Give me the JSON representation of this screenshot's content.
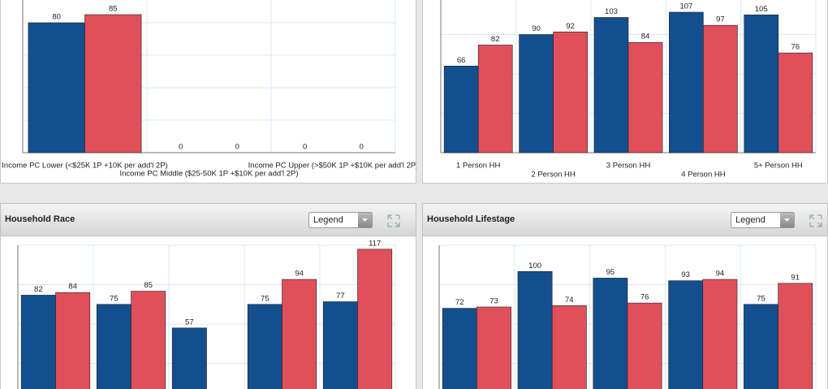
{
  "chart_data": [
    {
      "type": "bar",
      "categories": [
        "Income PC Lower (<$25K 1P +10K per add'l 2P)",
        "Income PC Middle ($25-50K 1P +$10K per add'l 2P)",
        "Income PC Upper (>$50K 1P +$10K per add'l 2P)"
      ],
      "series": [
        {
          "color": "#134f8f",
          "values": [
            80,
            0,
            0
          ]
        },
        {
          "color": "#e0505a",
          "values": [
            85,
            0,
            0
          ]
        }
      ],
      "ylim": [
        0,
        95
      ],
      "yticks": [
        0,
        20,
        40,
        60,
        80
      ],
      "grid": true
    },
    {
      "type": "bar",
      "categories": [
        "1 Person HH",
        "2 Person HH",
        "3 Person HH",
        "4 Person HH",
        "5+ Person HH"
      ],
      "series": [
        {
          "color": "#134f8f",
          "values": [
            66,
            90,
            103,
            107,
            105
          ]
        },
        {
          "color": "#e0505a",
          "values": [
            82,
            92,
            84,
            97,
            76
          ]
        }
      ],
      "ylim": [
        0,
        120
      ],
      "yticks": [
        0,
        30,
        60,
        90,
        120
      ],
      "grid": true
    },
    {
      "type": "bar",
      "title": "Household Race",
      "legend_button": "Legend",
      "categories": [
        null,
        null,
        null,
        null,
        null
      ],
      "series": [
        {
          "color": "#134f8f",
          "values": [
            82,
            75,
            57,
            75,
            77
          ]
        },
        {
          "color": "#e0505a",
          "values": [
            84,
            85,
            null,
            94,
            117
          ]
        }
      ],
      "ylim": [
        0,
        120
      ],
      "yticks": [
        0,
        30,
        60,
        90,
        120
      ],
      "grid": true
    },
    {
      "type": "bar",
      "title": "Household Lifestage",
      "legend_button": "Legend",
      "categories": [
        null,
        null,
        null,
        null,
        null
      ],
      "series": [
        {
          "color": "#134f8f",
          "values": [
            72,
            100,
            95,
            93,
            75
          ]
        },
        {
          "color": "#e0505a",
          "values": [
            73,
            74,
            76,
            94,
            91
          ]
        }
      ],
      "ylim": [
        0,
        120
      ],
      "yticks": [
        0,
        30,
        60,
        90,
        120
      ],
      "grid": true
    }
  ]
}
